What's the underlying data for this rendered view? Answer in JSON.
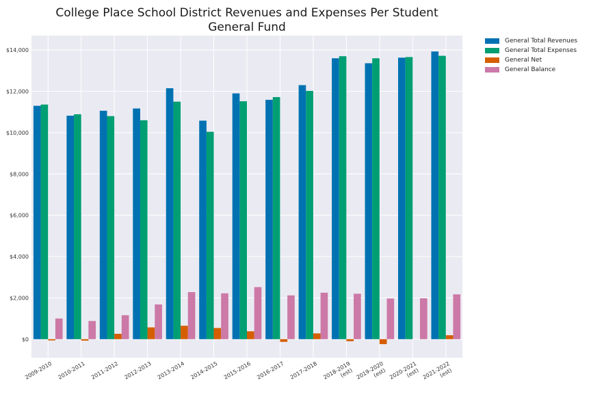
{
  "chart_data": {
    "type": "bar",
    "title": "College Place School District Revenues and Expenses Per Student",
    "subtitle": "General Fund",
    "xlabel": "",
    "ylabel": "",
    "ylim": [
      -900,
      14700
    ],
    "yticks": [
      0,
      2000,
      4000,
      6000,
      8000,
      10000,
      12000,
      14000
    ],
    "ytick_labels": [
      "$0",
      "$2,000",
      "$4,000",
      "$6,000",
      "$8,000",
      "$10,000",
      "$12,000",
      "$14,000"
    ],
    "grid": true,
    "legend_position": "outside-top-right",
    "categories": [
      "2009-2010",
      "2010-2011",
      "2011-2012",
      "2012-2013",
      "2013-2014",
      "2014-2015",
      "2015-2016",
      "2016-2017",
      "2017-2018",
      "2018-2019\n(est)",
      "2019-2020\n(est)",
      "2020-2021\n(est)",
      "2021-2022\n(est)"
    ],
    "series": [
      {
        "name": "General Total Revenues",
        "color": "#0072b2",
        "values": [
          11300,
          10820,
          11060,
          11170,
          12150,
          10580,
          11900,
          11590,
          12300,
          13600,
          13360,
          13630,
          13930
        ]
      },
      {
        "name": "General Total Expenses",
        "color": "#009e73",
        "values": [
          11360,
          10890,
          10800,
          10600,
          11500,
          10040,
          11520,
          11720,
          12020,
          13700,
          13600,
          13660,
          13720
        ]
      },
      {
        "name": "General Net",
        "color": "#d55e00",
        "values": [
          -60,
          -70,
          260,
          570,
          650,
          540,
          380,
          -130,
          280,
          -100,
          -240,
          0,
          190
        ]
      },
      {
        "name": "General Balance",
        "color": "#cc79a7",
        "values": [
          1000,
          880,
          1160,
          1680,
          2280,
          2220,
          2520,
          2120,
          2250,
          2200,
          1970,
          1980,
          2170
        ]
      }
    ]
  }
}
